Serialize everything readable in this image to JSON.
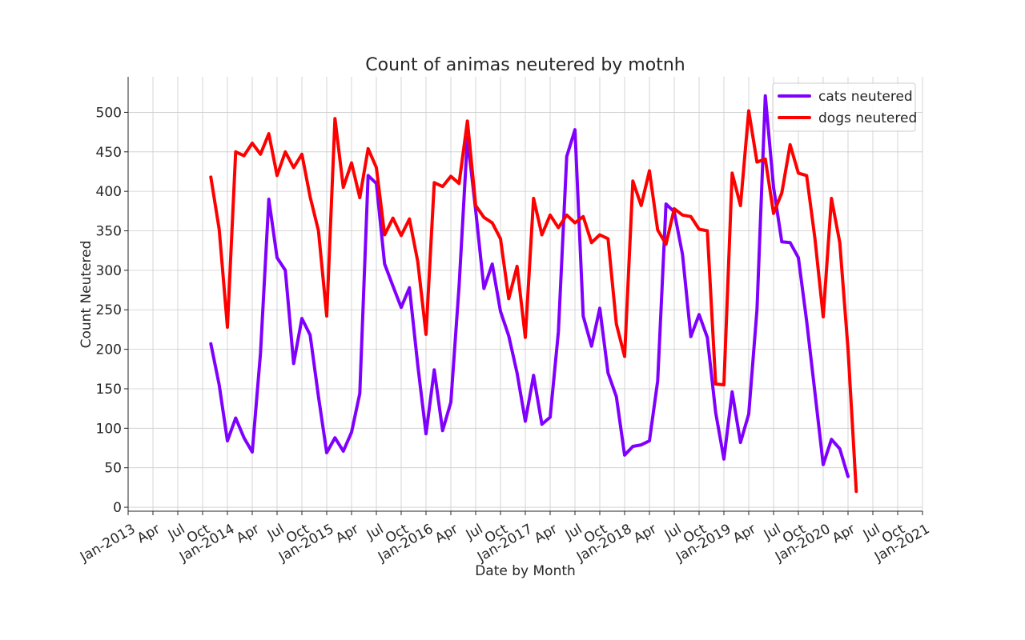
{
  "chart_data": {
    "type": "line",
    "title": "Count of animas neutered by motnh",
    "xlabel": "Date by Month",
    "ylabel": "Count Neutered",
    "x_range": [
      "2013-01",
      "2021-01"
    ],
    "ylim": [
      -5,
      545
    ],
    "y_ticks": [
      0,
      50,
      100,
      150,
      200,
      250,
      300,
      350,
      400,
      450,
      500
    ],
    "x_ticks": [
      {
        "date": "2013-01",
        "label": "Jan-2013"
      },
      {
        "date": "2013-04",
        "label": "Apr"
      },
      {
        "date": "2013-07",
        "label": "Jul"
      },
      {
        "date": "2013-10",
        "label": "Oct"
      },
      {
        "date": "2014-01",
        "label": "Jan-2014"
      },
      {
        "date": "2014-04",
        "label": "Apr"
      },
      {
        "date": "2014-07",
        "label": "Jul"
      },
      {
        "date": "2014-10",
        "label": "Oct"
      },
      {
        "date": "2015-01",
        "label": "Jan-2015"
      },
      {
        "date": "2015-04",
        "label": "Apr"
      },
      {
        "date": "2015-07",
        "label": "Jul"
      },
      {
        "date": "2015-10",
        "label": "Oct"
      },
      {
        "date": "2016-01",
        "label": "Jan-2016"
      },
      {
        "date": "2016-04",
        "label": "Apr"
      },
      {
        "date": "2016-07",
        "label": "Jul"
      },
      {
        "date": "2016-10",
        "label": "Oct"
      },
      {
        "date": "2017-01",
        "label": "Jan-2017"
      },
      {
        "date": "2017-04",
        "label": "Apr"
      },
      {
        "date": "2017-07",
        "label": "Jul"
      },
      {
        "date": "2017-10",
        "label": "Oct"
      },
      {
        "date": "2018-01",
        "label": "Jan-2018"
      },
      {
        "date": "2018-04",
        "label": "Apr"
      },
      {
        "date": "2018-07",
        "label": "Jul"
      },
      {
        "date": "2018-10",
        "label": "Oct"
      },
      {
        "date": "2019-01",
        "label": "Jan-2019"
      },
      {
        "date": "2019-04",
        "label": "Apr"
      },
      {
        "date": "2019-07",
        "label": "Jul"
      },
      {
        "date": "2019-10",
        "label": "Oct"
      },
      {
        "date": "2020-01",
        "label": "Jan-2020"
      },
      {
        "date": "2020-04",
        "label": "Apr"
      },
      {
        "date": "2020-07",
        "label": "Jul"
      },
      {
        "date": "2020-10",
        "label": "Oct"
      },
      {
        "date": "2021-01",
        "label": "Jan-2021"
      }
    ],
    "grid": true,
    "legend_position": "top-right",
    "series": [
      {
        "name": "cats neutered",
        "color": "#8000ff",
        "points": [
          [
            "2013-11",
            207
          ],
          [
            "2013-12",
            155
          ],
          [
            "2014-01",
            84
          ],
          [
            "2014-02",
            113
          ],
          [
            "2014-03",
            88
          ],
          [
            "2014-04",
            70
          ],
          [
            "2014-05",
            195
          ],
          [
            "2014-06",
            390
          ],
          [
            "2014-07",
            316
          ],
          [
            "2014-08",
            300
          ],
          [
            "2014-09",
            182
          ],
          [
            "2014-10",
            239
          ],
          [
            "2014-11",
            218
          ],
          [
            "2014-12",
            140
          ],
          [
            "2015-01",
            69
          ],
          [
            "2015-02",
            88
          ],
          [
            "2015-03",
            71
          ],
          [
            "2015-04",
            95
          ],
          [
            "2015-05",
            144
          ],
          [
            "2015-06",
            420
          ],
          [
            "2015-07",
            410
          ],
          [
            "2015-08",
            308
          ],
          [
            "2015-09",
            280
          ],
          [
            "2015-10",
            253
          ],
          [
            "2015-11",
            278
          ],
          [
            "2015-12",
            180
          ],
          [
            "2016-01",
            93
          ],
          [
            "2016-02",
            174
          ],
          [
            "2016-03",
            97
          ],
          [
            "2016-04",
            133
          ],
          [
            "2016-05",
            280
          ],
          [
            "2016-06",
            468
          ],
          [
            "2016-07",
            376
          ],
          [
            "2016-08",
            277
          ],
          [
            "2016-09",
            308
          ],
          [
            "2016-10",
            248
          ],
          [
            "2016-11",
            217
          ],
          [
            "2016-12",
            170
          ],
          [
            "2017-01",
            109
          ],
          [
            "2017-02",
            167
          ],
          [
            "2017-03",
            105
          ],
          [
            "2017-04",
            114
          ],
          [
            "2017-05",
            222
          ],
          [
            "2017-06",
            444
          ],
          [
            "2017-07",
            478
          ],
          [
            "2017-08",
            242
          ],
          [
            "2017-09",
            204
          ],
          [
            "2017-10",
            252
          ],
          [
            "2017-11",
            170
          ],
          [
            "2017-12",
            140
          ],
          [
            "2018-01",
            66
          ],
          [
            "2018-02",
            77
          ],
          [
            "2018-03",
            79
          ],
          [
            "2018-04",
            84
          ],
          [
            "2018-05",
            160
          ],
          [
            "2018-06",
            384
          ],
          [
            "2018-07",
            374
          ],
          [
            "2018-08",
            320
          ],
          [
            "2018-09",
            216
          ],
          [
            "2018-10",
            244
          ],
          [
            "2018-11",
            215
          ],
          [
            "2018-12",
            120
          ],
          [
            "2019-01",
            61
          ],
          [
            "2019-02",
            146
          ],
          [
            "2019-03",
            82
          ],
          [
            "2019-04",
            118
          ],
          [
            "2019-05",
            250
          ],
          [
            "2019-06",
            521
          ],
          [
            "2019-07",
            405
          ],
          [
            "2019-08",
            336
          ],
          [
            "2019-09",
            335
          ],
          [
            "2019-10",
            316
          ],
          [
            "2019-11",
            236
          ],
          [
            "2019-12",
            145
          ],
          [
            "2020-01",
            54
          ],
          [
            "2020-02",
            86
          ],
          [
            "2020-03",
            74
          ],
          [
            "2020-04",
            39
          ]
        ]
      },
      {
        "name": "dogs neutered",
        "color": "#ff0000",
        "points": [
          [
            "2013-11",
            418
          ],
          [
            "2013-12",
            352
          ],
          [
            "2014-01",
            228
          ],
          [
            "2014-02",
            450
          ],
          [
            "2014-03",
            445
          ],
          [
            "2014-04",
            461
          ],
          [
            "2014-05",
            447
          ],
          [
            "2014-06",
            473
          ],
          [
            "2014-07",
            420
          ],
          [
            "2014-08",
            450
          ],
          [
            "2014-09",
            430
          ],
          [
            "2014-10",
            447
          ],
          [
            "2014-11",
            393
          ],
          [
            "2014-12",
            350
          ],
          [
            "2015-01",
            242
          ],
          [
            "2015-02",
            492
          ],
          [
            "2015-03",
            405
          ],
          [
            "2015-04",
            436
          ],
          [
            "2015-05",
            392
          ],
          [
            "2015-06",
            454
          ],
          [
            "2015-07",
            430
          ],
          [
            "2015-08",
            345
          ],
          [
            "2015-09",
            366
          ],
          [
            "2015-10",
            344
          ],
          [
            "2015-11",
            365
          ],
          [
            "2015-12",
            311
          ],
          [
            "2016-01",
            219
          ],
          [
            "2016-02",
            411
          ],
          [
            "2016-03",
            406
          ],
          [
            "2016-04",
            419
          ],
          [
            "2016-05",
            410
          ],
          [
            "2016-06",
            489
          ],
          [
            "2016-07",
            382
          ],
          [
            "2016-08",
            367
          ],
          [
            "2016-09",
            360
          ],
          [
            "2016-10",
            340
          ],
          [
            "2016-11",
            264
          ],
          [
            "2016-12",
            305
          ],
          [
            "2017-01",
            215
          ],
          [
            "2017-02",
            391
          ],
          [
            "2017-03",
            345
          ],
          [
            "2017-04",
            370
          ],
          [
            "2017-05",
            354
          ],
          [
            "2017-06",
            370
          ],
          [
            "2017-07",
            360
          ],
          [
            "2017-08",
            368
          ],
          [
            "2017-09",
            335
          ],
          [
            "2017-10",
            345
          ],
          [
            "2017-11",
            340
          ],
          [
            "2017-12",
            232
          ],
          [
            "2018-01",
            191
          ],
          [
            "2018-02",
            413
          ],
          [
            "2018-03",
            382
          ],
          [
            "2018-04",
            426
          ],
          [
            "2018-05",
            351
          ],
          [
            "2018-06",
            333
          ],
          [
            "2018-07",
            378
          ],
          [
            "2018-08",
            370
          ],
          [
            "2018-09",
            368
          ],
          [
            "2018-10",
            352
          ],
          [
            "2018-11",
            350
          ],
          [
            "2018-12",
            156
          ],
          [
            "2019-01",
            155
          ],
          [
            "2019-02",
            423
          ],
          [
            "2019-03",
            382
          ],
          [
            "2019-04",
            502
          ],
          [
            "2019-05",
            437
          ],
          [
            "2019-06",
            441
          ],
          [
            "2019-07",
            372
          ],
          [
            "2019-08",
            398
          ],
          [
            "2019-09",
            459
          ],
          [
            "2019-10",
            423
          ],
          [
            "2019-11",
            420
          ],
          [
            "2019-12",
            340
          ],
          [
            "2020-01",
            241
          ],
          [
            "2020-02",
            391
          ],
          [
            "2020-03",
            335
          ],
          [
            "2020-04",
            200
          ],
          [
            "2020-05",
            20
          ]
        ]
      }
    ]
  }
}
